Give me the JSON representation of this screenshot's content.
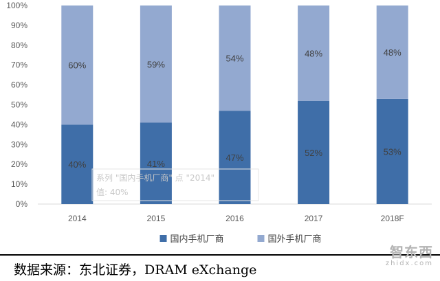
{
  "chart_data": {
    "type": "bar",
    "stacked": true,
    "categories": [
      "2014",
      "2015",
      "2016",
      "2017",
      "2018F"
    ],
    "series": [
      {
        "name": "国内手机厂商",
        "values": [
          40,
          41,
          47,
          52,
          53
        ],
        "labels": [
          "40%",
          "41%",
          "47%",
          "52%",
          "53%"
        ],
        "color": "#3f6ea8"
      },
      {
        "name": "国外手机厂商",
        "values": [
          60,
          59,
          54,
          48,
          48
        ],
        "labels": [
          "60%",
          "59%",
          "54%",
          "48%",
          "48%"
        ],
        "color": "#93a9d0"
      }
    ],
    "ylim": [
      0,
      100
    ],
    "yticks": [
      "0%",
      "10%",
      "20%",
      "30%",
      "40%",
      "50%",
      "60%",
      "70%",
      "80%",
      "90%",
      "100%"
    ],
    "grid": false,
    "legend_position": "bottom",
    "tooltip": {
      "line1": "系列 \"国内手机厂商\" 点 \"2014\"",
      "line2": "值: 40%"
    }
  },
  "source": "数据来源：东北证券，DRAM eXchange",
  "watermark": {
    "main": "智东西",
    "sub": "zhidx.com"
  }
}
